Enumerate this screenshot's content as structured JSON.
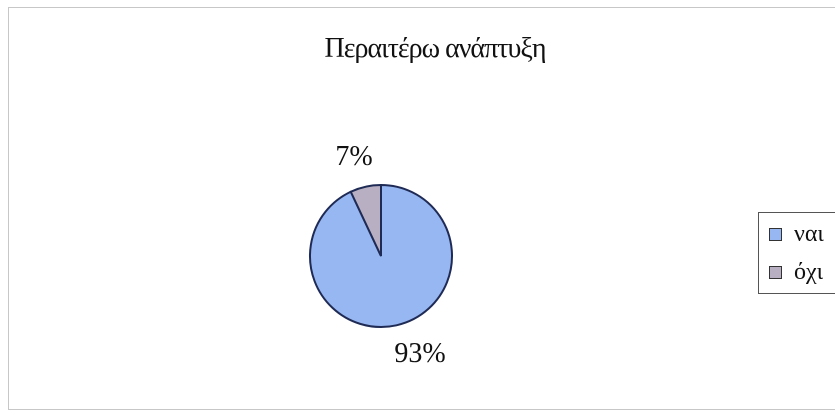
{
  "chart_data": {
    "type": "pie",
    "title": "Περαιτέρω ανάπτυξη",
    "categories": [
      "ναι",
      "όχι"
    ],
    "values": [
      93,
      7
    ],
    "data_labels": [
      "93%",
      "7%"
    ],
    "colors": [
      "#97b7f2",
      "#b8b0c2"
    ],
    "start_angle_degrees_from_top_clockwise": 0,
    "legend_position": "right"
  }
}
